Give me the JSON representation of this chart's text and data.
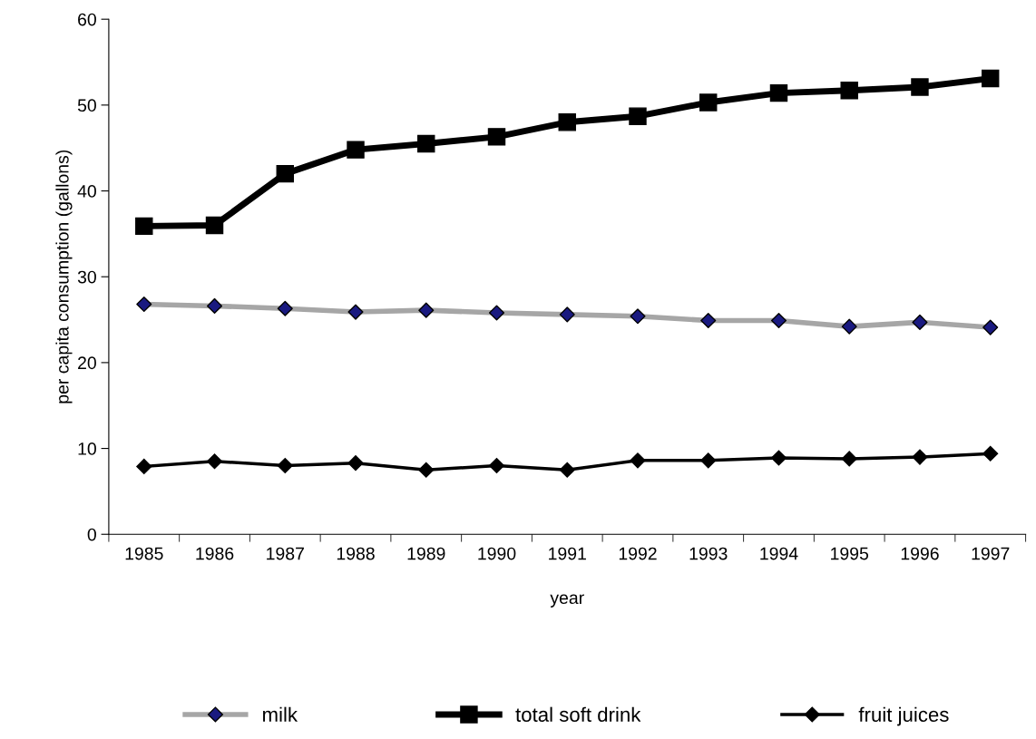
{
  "chart_data": {
    "type": "line",
    "xlabel": "year",
    "ylabel": "per capita consumption (gallons)",
    "categories": [
      "1985",
      "1986",
      "1987",
      "1988",
      "1989",
      "1990",
      "1991",
      "1992",
      "1993",
      "1994",
      "1995",
      "1996",
      "1997"
    ],
    "series": [
      {
        "name": "milk",
        "color": "#a6a6a6",
        "marker": "diamond",
        "colors": [
          "#1a1a80",
          "#1a1a80",
          "#1a1a80",
          "#1a1a80",
          "#1a1a80",
          "#1a1a80",
          "#1a1a80",
          "#1a1a80",
          "#1a1a80",
          "#1a1a80",
          "#1a1a80",
          "#1a1a80",
          "#1a1a80"
        ],
        "values": [
          26.8,
          26.6,
          26.3,
          25.9,
          26.1,
          25.8,
          25.6,
          25.4,
          24.9,
          24.9,
          24.2,
          24.7,
          24.1
        ]
      },
      {
        "name": "total soft drink",
        "color": "#000000",
        "marker": "square",
        "values": [
          35.9,
          36.0,
          42.0,
          44.8,
          45.5,
          46.3,
          48.0,
          48.7,
          50.3,
          51.4,
          51.7,
          52.1,
          53.1
        ]
      },
      {
        "name": "fruit juices",
        "color": "#000000",
        "marker": "diamond",
        "values": [
          7.9,
          8.5,
          8.0,
          8.3,
          7.5,
          8.0,
          7.5,
          8.6,
          8.6,
          8.9,
          8.8,
          9.0,
          9.4
        ]
      }
    ],
    "ylim": [
      0,
      60
    ],
    "yticks": [
      0,
      10,
      20,
      30,
      40,
      50,
      60
    ],
    "grid": false,
    "legend": "bottom"
  }
}
